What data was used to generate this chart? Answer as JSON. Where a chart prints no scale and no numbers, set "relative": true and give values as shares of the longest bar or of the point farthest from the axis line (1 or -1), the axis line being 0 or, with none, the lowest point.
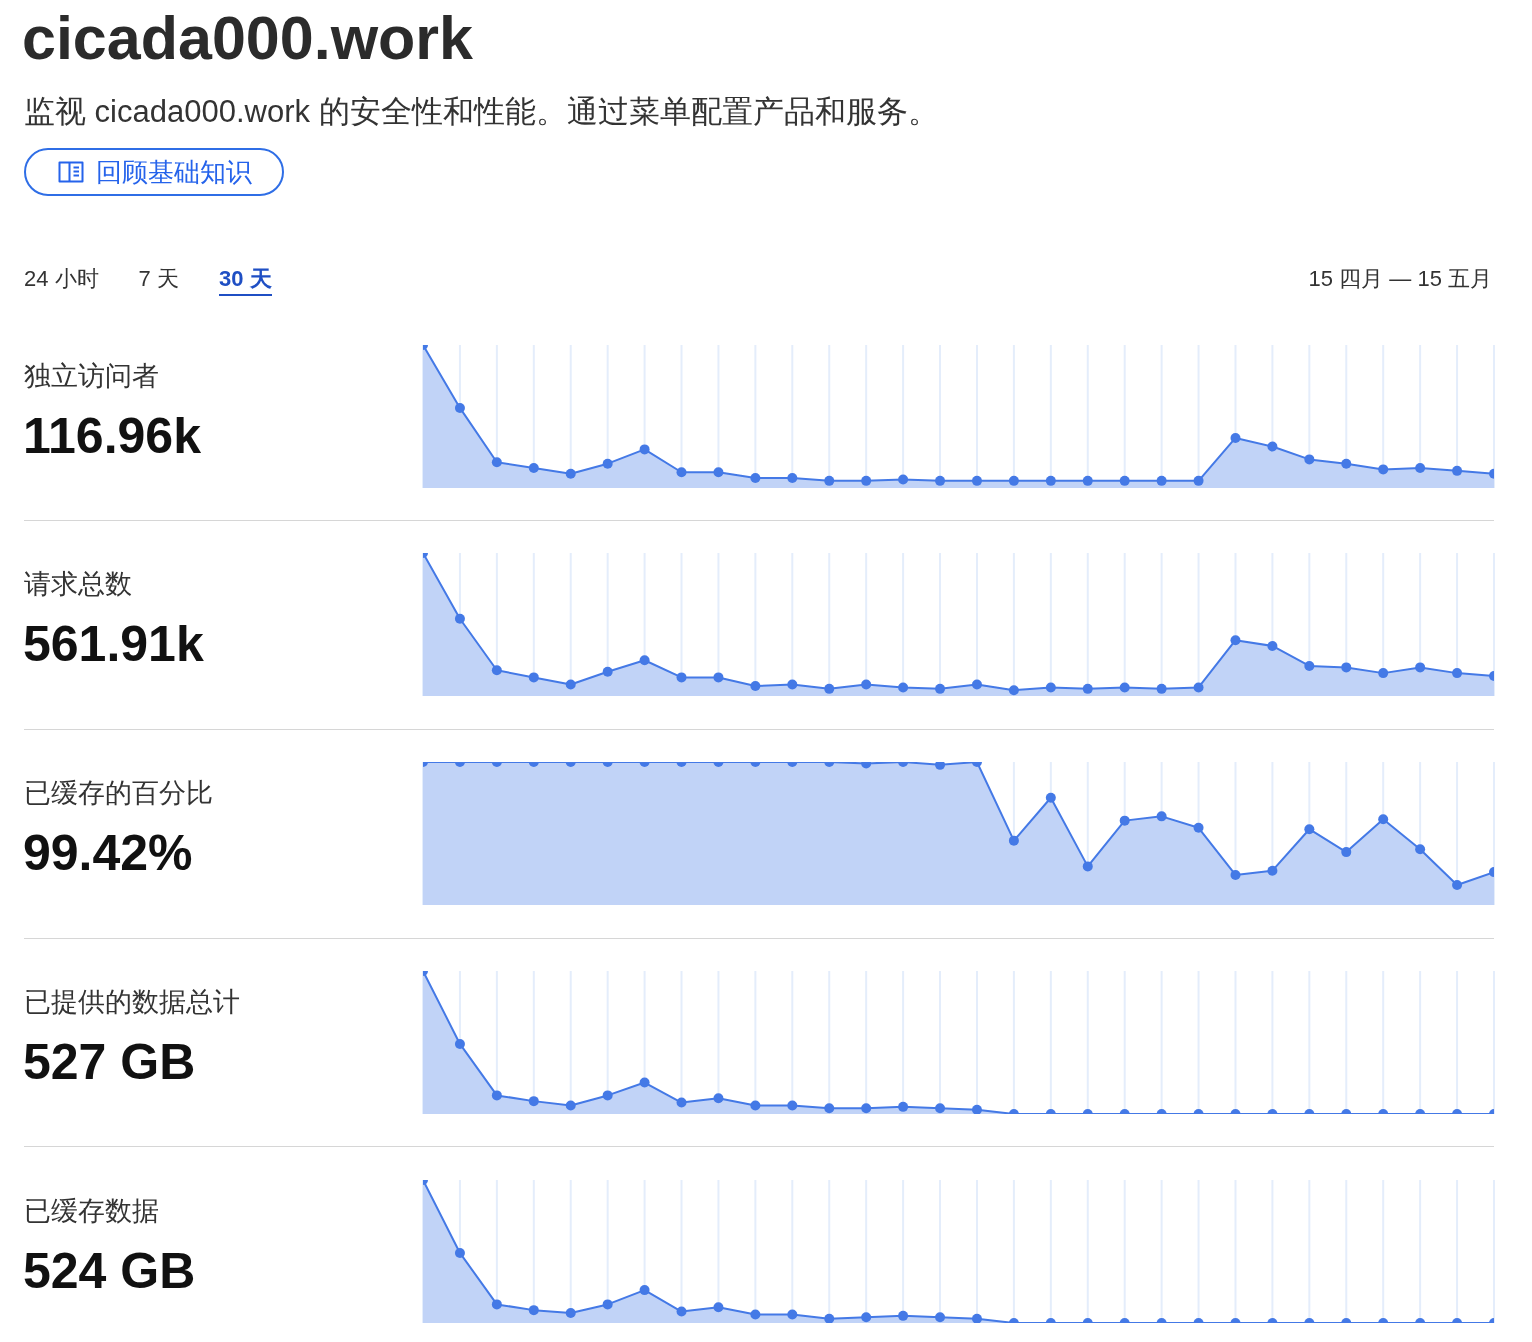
{
  "chart_data": [
    {
      "type": "other",
      "title": "cicada000.work",
      "subtitle": "监视 cicada000.work 的安全性和性能。通过菜单配置产品和服务。",
      "annotations": [
        "回顾基础知识",
        "24 小时",
        "7 天",
        "30 天",
        "15 四月 — 15 五月"
      ]
    },
    {
      "type": "other",
      "title": "独立访问者",
      "subtitle": "116.96k"
    },
    {
      "type": "area",
      "relative": true,
      "categories": [
        null,
        null,
        null,
        null,
        null,
        null,
        null,
        null,
        null,
        null,
        null,
        null,
        null,
        null,
        null,
        null,
        null,
        null,
        null,
        null,
        null,
        null,
        null,
        null,
        null,
        null,
        null,
        null,
        null,
        null
      ],
      "values": [
        1,
        0.56,
        0.18,
        0.14,
        0.1,
        0.17,
        0.27,
        0.11,
        0.11,
        0.07,
        0.07,
        0.05,
        0.05,
        0.06,
        0.05,
        0.05,
        0.05,
        0.05,
        0.05,
        0.05,
        0.05,
        0.05,
        0.35,
        0.29,
        0.2,
        0.17,
        0.13,
        0.14,
        0.12,
        0.1
      ],
      "color": "#4479e6",
      "grid": "x",
      "marker": "circle"
    },
    {
      "type": "other",
      "title": "请求总数",
      "subtitle": "561.91k"
    },
    {
      "type": "area",
      "relative": true,
      "categories": [
        null,
        null,
        null,
        null,
        null,
        null,
        null,
        null,
        null,
        null,
        null,
        null,
        null,
        null,
        null,
        null,
        null,
        null,
        null,
        null,
        null,
        null,
        null,
        null,
        null,
        null,
        null,
        null,
        null,
        null
      ],
      "values": [
        1,
        0.54,
        0.18,
        0.13,
        0.08,
        0.17,
        0.25,
        0.13,
        0.13,
        0.07,
        0.08,
        0.05,
        0.08,
        0.06,
        0.05,
        0.08,
        0.04,
        0.06,
        0.05,
        0.06,
        0.05,
        0.06,
        0.39,
        0.35,
        0.21,
        0.2,
        0.16,
        0.2,
        0.16,
        0.14
      ],
      "color": "#4479e6",
      "grid": "x",
      "marker": "circle"
    },
    {
      "type": "other",
      "title": "已缓存的百分比",
      "subtitle": "99.42%"
    },
    {
      "type": "area",
      "relative": true,
      "categories": [
        null,
        null,
        null,
        null,
        null,
        null,
        null,
        null,
        null,
        null,
        null,
        null,
        null,
        null,
        null,
        null,
        null,
        null,
        null,
        null,
        null,
        null,
        null,
        null,
        null,
        null,
        null,
        null,
        null,
        null
      ],
      "values": [
        1,
        1,
        1,
        1,
        1,
        1,
        1,
        1,
        1,
        1,
        1,
        1,
        0.99,
        1,
        0.98,
        1,
        0.45,
        0.75,
        0.27,
        0.59,
        0.62,
        0.54,
        0.21,
        0.24,
        0.53,
        0.37,
        0.6,
        0.39,
        0.14,
        0.23
      ],
      "color": "#4479e6",
      "grid": "x",
      "marker": "circle"
    },
    {
      "type": "other",
      "title": "已提供的数据总计",
      "subtitle": "527 GB"
    },
    {
      "type": "area",
      "relative": true,
      "categories": [
        null,
        null,
        null,
        null,
        null,
        null,
        null,
        null,
        null,
        null,
        null,
        null,
        null,
        null,
        null,
        null,
        null,
        null,
        null,
        null,
        null,
        null,
        null,
        null,
        null,
        null,
        null,
        null,
        null,
        null
      ],
      "values": [
        1,
        0.49,
        0.13,
        0.09,
        0.06,
        0.13,
        0.22,
        0.08,
        0.11,
        0.06,
        0.06,
        0.04,
        0.04,
        0.05,
        0.04,
        0.03,
        0,
        0,
        0,
        0,
        0,
        0,
        0,
        0,
        0,
        0,
        0,
        0,
        0,
        0
      ],
      "color": "#4479e6",
      "grid": "x",
      "marker": "circle"
    },
    {
      "type": "other",
      "title": "已缓存数据",
      "subtitle": "524 GB"
    },
    {
      "type": "area",
      "relative": true,
      "categories": [
        null,
        null,
        null,
        null,
        null,
        null,
        null,
        null,
        null,
        null,
        null,
        null,
        null,
        null,
        null,
        null,
        null,
        null,
        null,
        null,
        null,
        null,
        null,
        null,
        null,
        null,
        null,
        null,
        null,
        null
      ],
      "values": [
        1,
        0.49,
        0.13,
        0.09,
        0.07,
        0.13,
        0.23,
        0.08,
        0.11,
        0.06,
        0.06,
        0.03,
        0.04,
        0.05,
        0.04,
        0.03,
        0,
        0,
        0,
        0,
        0,
        0,
        0,
        0,
        0,
        0,
        0,
        0,
        0,
        0
      ],
      "color": "#4479e6",
      "grid": "x",
      "marker": "circle"
    }
  ]
}
